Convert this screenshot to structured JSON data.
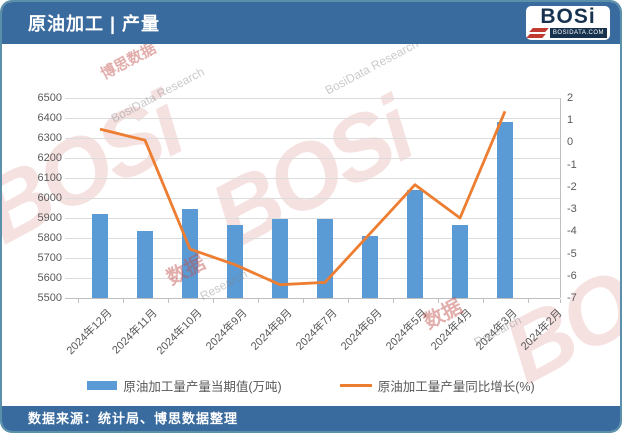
{
  "header": {
    "title": "原油加工 | 产量",
    "logo": {
      "brand": "BOSi",
      "domain": "BOSIDATA.COM"
    }
  },
  "footer": {
    "source": "数据来源：统计局、博思数据整理"
  },
  "legend": {
    "bar_label": "原油加工量产量当期值(万吨)",
    "line_label": "原油加工量产量同比增长(%)"
  },
  "colors": {
    "band_blue": "#3A6B9E",
    "bar": "#5B9BD5",
    "line": "#ED7D31",
    "grid": "#DCDCDC",
    "axis_text": "#595959",
    "logo_red": "#C13B33"
  },
  "watermarks": [
    "BOSi",
    "BOSi",
    "BOSi",
    "博思数据",
    "BosiData Research",
    "BosiData Research",
    "数据",
    "数据",
    "Research",
    "Research"
  ],
  "chart_data": {
    "type": "bar+line combo",
    "title": "原油加工 | 产量",
    "categories": [
      "2024年12月",
      "2024年11月",
      "2024年10月",
      "2024年9月",
      "2024年8月",
      "2024年7月",
      "2024年6月",
      "2024年5月",
      "2024年4月",
      "2024年3月",
      "2024年2月"
    ],
    "series": [
      {
        "name": "原油加工量产量当期值(万吨)",
        "type": "bar",
        "axis": "left",
        "values": [
          5920,
          5835,
          5945,
          5865,
          5895,
          5895,
          5810,
          6040,
          5865,
          6380,
          null
        ]
      },
      {
        "name": "原油加工量产量同比增长(%)",
        "type": "line",
        "axis": "right",
        "values": [
          0.6,
          0.1,
          -4.8,
          -5.5,
          -6.4,
          -6.3,
          -4.1,
          -1.9,
          -3.4,
          1.4,
          null
        ]
      }
    ],
    "left_axis": {
      "min": 5500,
      "max": 6500,
      "step": 100
    },
    "right_axis": {
      "min": -7,
      "max": 2,
      "step": 1
    },
    "grid": true,
    "legend_position": "bottom"
  }
}
